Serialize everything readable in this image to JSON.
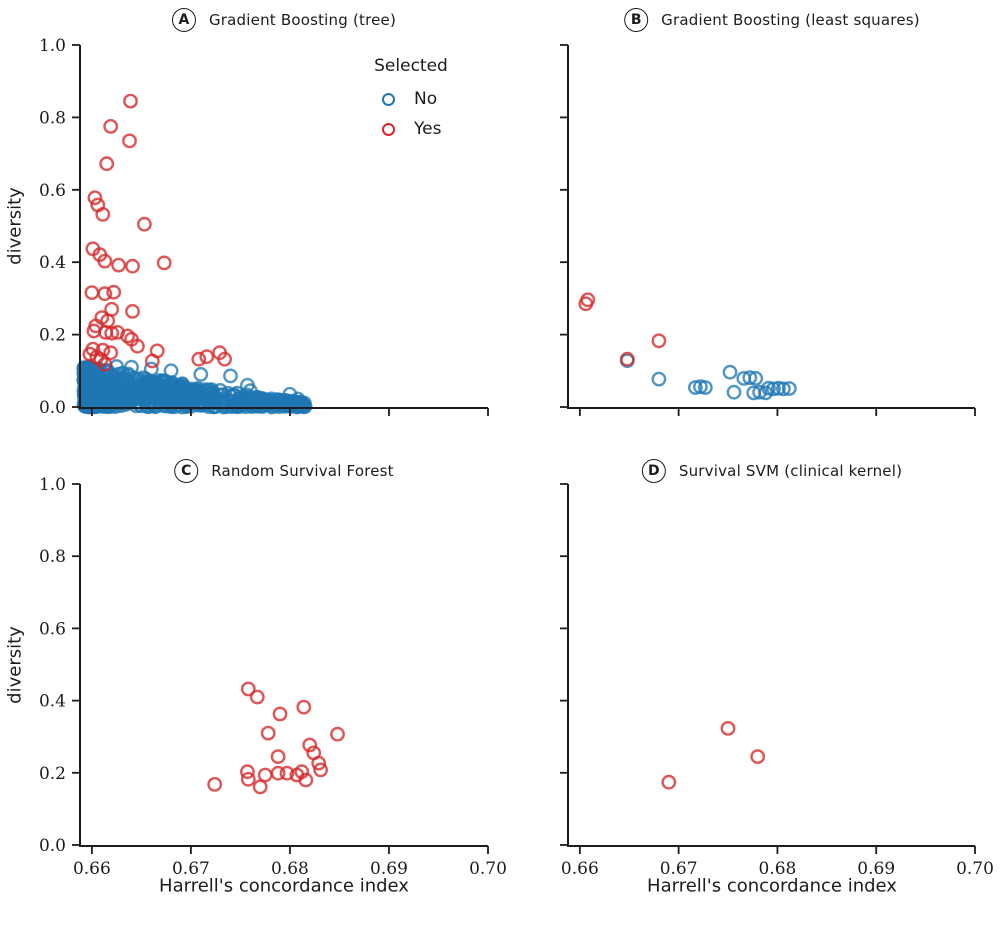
{
  "figure": {
    "background": "#ffffff",
    "axis_color": "#1c1c1c",
    "colors": {
      "no": "#1f77b4",
      "yes": "#d62728"
    },
    "ylabel": "diversity",
    "xlabel": "Harrell's concordance index",
    "legend": {
      "title": "Selected",
      "items": [
        {
          "label": "No",
          "color": "#1f77b4"
        },
        {
          "label": "Yes",
          "color": "#d62728"
        }
      ]
    }
  },
  "chart_data": [
    {
      "type": "scatter",
      "panel_label": "A",
      "title": "Gradient Boosting (tree)",
      "xlabel": "Harrell's concordance index",
      "ylabel": "diversity",
      "xlim": [
        0.6588,
        0.7
      ],
      "ylim": [
        0.0,
        1.0
      ],
      "x_ticks": [
        "0.66",
        "0.67",
        "0.68",
        "0.69",
        "0.70"
      ],
      "y_ticks": [
        "0.0",
        "0.2",
        "0.4",
        "0.6",
        "0.8",
        "1.0"
      ],
      "show_x_tick_labels": false,
      "show_y_tick_labels": true,
      "grid": false,
      "legend_position": "upper center-right, no frame",
      "series": [
        {
          "name": "No",
          "color_key": "no",
          "cloud": {
            "description": "dense band of ~600 unselected models hugging y=0, diversity 0-0.11, concentrated at low concordance and tapering out by 0.6815",
            "seed": 42,
            "n": 620,
            "x_min": 0.6592,
            "x_max": 0.6817,
            "x_pow": 1.8,
            "y_base": 0.012,
            "y_amp": 0.102,
            "y_taper_pow": 1.15,
            "y_pow": 1.25
          },
          "points": [
            [
              0.674,
              0.086
            ],
            [
              0.6757,
              0.06
            ],
            [
              0.671,
              0.09
            ],
            [
              0.668,
              0.1
            ],
            [
              0.666,
              0.105
            ],
            [
              0.664,
              0.11
            ],
            [
              0.6625,
              0.112
            ],
            [
              0.68,
              0.035
            ],
            [
              0.6808,
              0.022
            ],
            [
              0.676,
              0.045
            ],
            [
              0.6812,
              0.012
            ]
          ]
        },
        {
          "name": "Yes",
          "color_key": "yes",
          "points": [
            [
              0.6639,
              0.845
            ],
            [
              0.6619,
              0.775
            ],
            [
              0.6638,
              0.735
            ],
            [
              0.6615,
              0.672
            ],
            [
              0.6603,
              0.578
            ],
            [
              0.6606,
              0.558
            ],
            [
              0.6611,
              0.532
            ],
            [
              0.6653,
              0.505
            ],
            [
              0.6601,
              0.437
            ],
            [
              0.6608,
              0.421
            ],
            [
              0.6613,
              0.403
            ],
            [
              0.6627,
              0.392
            ],
            [
              0.6641,
              0.389
            ],
            [
              0.6673,
              0.398
            ],
            [
              0.66,
              0.316
            ],
            [
              0.6613,
              0.313
            ],
            [
              0.6622,
              0.317
            ],
            [
              0.662,
              0.27
            ],
            [
              0.6641,
              0.264
            ],
            [
              0.661,
              0.247
            ],
            [
              0.6616,
              0.238
            ],
            [
              0.6604,
              0.224
            ],
            [
              0.6602,
              0.21
            ],
            [
              0.6614,
              0.206
            ],
            [
              0.662,
              0.204
            ],
            [
              0.6626,
              0.206
            ],
            [
              0.6636,
              0.196
            ],
            [
              0.664,
              0.187
            ],
            [
              0.6646,
              0.168
            ],
            [
              0.6601,
              0.16
            ],
            [
              0.6611,
              0.157
            ],
            [
              0.6598,
              0.146
            ],
            [
              0.6605,
              0.138
            ],
            [
              0.6609,
              0.131
            ],
            [
              0.6613,
              0.118
            ],
            [
              0.6619,
              0.15
            ],
            [
              0.6666,
              0.155
            ],
            [
              0.6661,
              0.127
            ],
            [
              0.6708,
              0.132
            ],
            [
              0.6716,
              0.139
            ],
            [
              0.6729,
              0.15
            ],
            [
              0.6734,
              0.132
            ]
          ]
        }
      ]
    },
    {
      "type": "scatter",
      "panel_label": "B",
      "title": "Gradient Boosting (least squares)",
      "xlabel": "Harrell's concordance index",
      "ylabel": "diversity",
      "xlim": [
        0.6588,
        0.7
      ],
      "ylim": [
        0.0,
        1.0
      ],
      "x_ticks": [
        "0.66",
        "0.67",
        "0.68",
        "0.69",
        "0.70"
      ],
      "y_ticks": [
        "0.0",
        "0.2",
        "0.4",
        "0.6",
        "0.8",
        "1.0"
      ],
      "show_x_tick_labels": false,
      "show_y_tick_labels": false,
      "grid": false,
      "series": [
        {
          "name": "No",
          "color_key": "no",
          "points": [
            [
              0.6648,
              0.128
            ],
            [
              0.668,
              0.077
            ],
            [
              0.6717,
              0.054
            ],
            [
              0.6722,
              0.056
            ],
            [
              0.6727,
              0.054
            ],
            [
              0.6752,
              0.096
            ],
            [
              0.6756,
              0.041
            ],
            [
              0.6766,
              0.079
            ],
            [
              0.6772,
              0.081
            ],
            [
              0.6778,
              0.079
            ],
            [
              0.6776,
              0.039
            ],
            [
              0.6782,
              0.041
            ],
            [
              0.6788,
              0.039
            ],
            [
              0.6791,
              0.052
            ],
            [
              0.6796,
              0.05
            ],
            [
              0.6801,
              0.052
            ],
            [
              0.6806,
              0.05
            ],
            [
              0.6812,
              0.051
            ]
          ]
        },
        {
          "name": "Yes",
          "color_key": "yes",
          "points": [
            [
              0.6606,
              0.285
            ],
            [
              0.6608,
              0.296
            ],
            [
              0.6648,
              0.132
            ],
            [
              0.668,
              0.183
            ]
          ]
        }
      ]
    },
    {
      "type": "scatter",
      "panel_label": "C",
      "title": "Random Survival Forest",
      "xlabel": "Harrell's concordance index",
      "ylabel": "diversity",
      "xlim": [
        0.6588,
        0.7
      ],
      "ylim": [
        0.0,
        1.0
      ],
      "x_ticks": [
        "0.66",
        "0.67",
        "0.68",
        "0.69",
        "0.70"
      ],
      "y_ticks": [
        "0.0",
        "0.2",
        "0.4",
        "0.6",
        "0.8",
        "1.0"
      ],
      "show_x_tick_labels": true,
      "show_y_tick_labels": true,
      "grid": false,
      "series": [
        {
          "name": "No",
          "color_key": "no",
          "points": []
        },
        {
          "name": "Yes",
          "color_key": "yes",
          "points": [
            [
              0.6724,
              0.168
            ],
            [
              0.6758,
              0.432
            ],
            [
              0.6767,
              0.41
            ],
            [
              0.679,
              0.363
            ],
            [
              0.6814,
              0.382
            ],
            [
              0.6778,
              0.31
            ],
            [
              0.6848,
              0.307
            ],
            [
              0.682,
              0.277
            ],
            [
              0.6824,
              0.255
            ],
            [
              0.6829,
              0.227
            ],
            [
              0.6831,
              0.208
            ],
            [
              0.6757,
              0.203
            ],
            [
              0.6758,
              0.182
            ],
            [
              0.677,
              0.161
            ],
            [
              0.6775,
              0.194
            ],
            [
              0.6788,
              0.245
            ],
            [
              0.6788,
              0.199
            ],
            [
              0.6797,
              0.199
            ],
            [
              0.6807,
              0.194
            ],
            [
              0.6812,
              0.203
            ],
            [
              0.6816,
              0.18
            ]
          ]
        }
      ]
    },
    {
      "type": "scatter",
      "panel_label": "D",
      "title": "Survival SVM (clinical kernel)",
      "xlabel": "Harrell's concordance index",
      "ylabel": "diversity",
      "xlim": [
        0.6588,
        0.7
      ],
      "ylim": [
        0.0,
        1.0
      ],
      "x_ticks": [
        "0.66",
        "0.67",
        "0.68",
        "0.69",
        "0.70"
      ],
      "y_ticks": [
        "0.0",
        "0.2",
        "0.4",
        "0.6",
        "0.8",
        "1.0"
      ],
      "show_x_tick_labels": true,
      "show_y_tick_labels": false,
      "grid": false,
      "series": [
        {
          "name": "No",
          "color_key": "no",
          "points": []
        },
        {
          "name": "Yes",
          "color_key": "yes",
          "points": [
            [
              0.669,
              0.174
            ],
            [
              0.675,
              0.323
            ],
            [
              0.678,
              0.245
            ]
          ]
        }
      ]
    }
  ]
}
